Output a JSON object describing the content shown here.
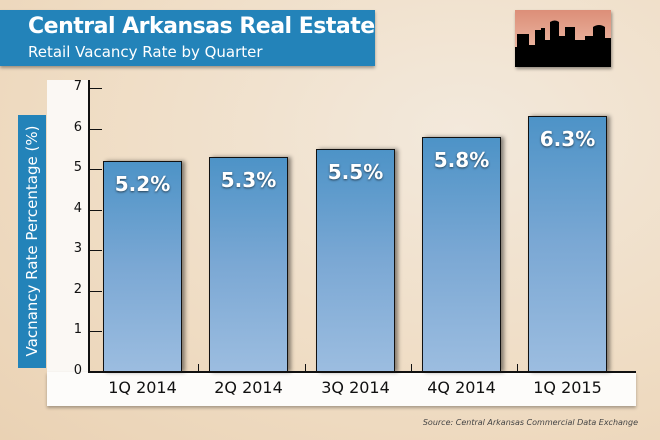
{
  "chart_data": {
    "type": "bar",
    "title": "Central Arkansas Real Estate",
    "subtitle": "Retail Vacancy Rate by Quarter",
    "xlabel": "",
    "ylabel": "Vacnancy Rate Percentage (%)",
    "ylim": [
      0,
      7
    ],
    "yticks": [
      "0",
      "1",
      "2",
      "3",
      "4",
      "5",
      "6",
      "7"
    ],
    "categories": [
      "1Q 2014",
      "2Q 2014",
      "3Q 2014",
      "4Q 2014",
      "1Q 2015"
    ],
    "values": [
      5.2,
      5.3,
      5.5,
      5.8,
      6.3
    ],
    "value_labels": [
      "5.2%",
      "5.3%",
      "5.5%",
      "5.8%",
      "6.3%"
    ],
    "source": "Source: Central Arkansas Commercial Data Exchange",
    "bar_color": "#7ba8d4",
    "accent": "#2383b9"
  }
}
